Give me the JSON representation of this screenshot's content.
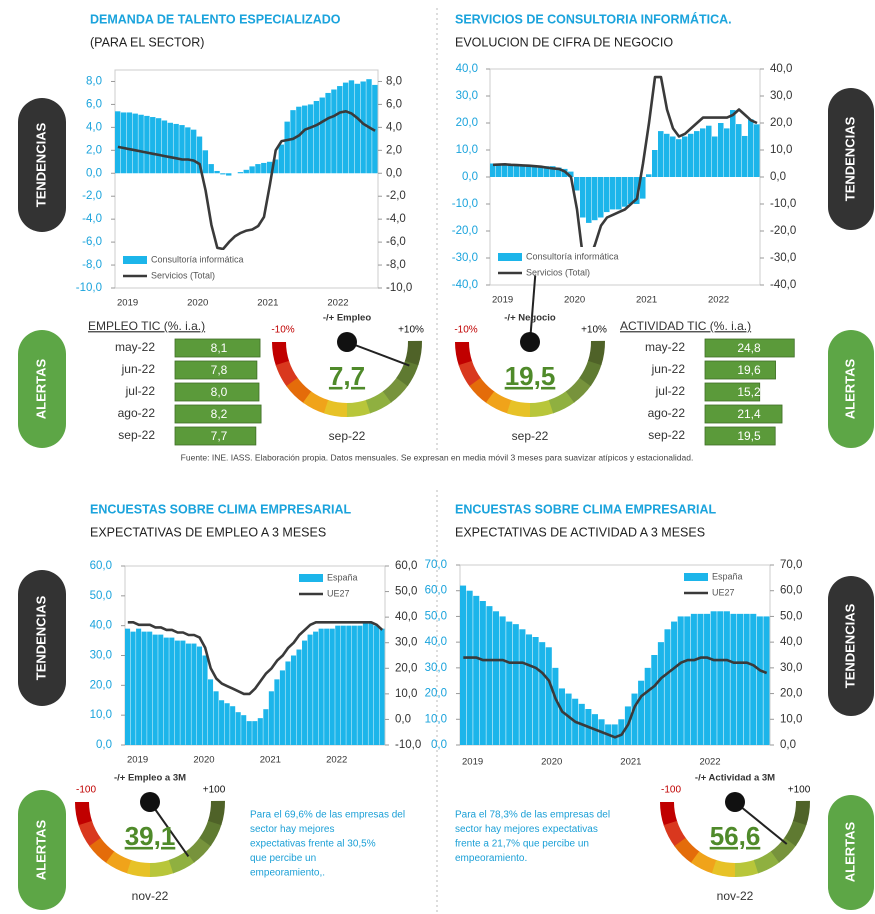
{
  "side_labels": {
    "trend": "TENDENCIAS",
    "alert": "ALERTAS"
  },
  "chart_data": [
    {
      "type": "combo",
      "title": "DEMANDA DE TALENTO ESPECIALIZADO",
      "subtitle": "(PARA EL SECTOR)",
      "categories": [
        "2019",
        null,
        null,
        null,
        null,
        null,
        null,
        null,
        null,
        null,
        null,
        null,
        "2020",
        null,
        null,
        null,
        null,
        null,
        null,
        null,
        null,
        null,
        null,
        null,
        "2021",
        null,
        null,
        null,
        null,
        null,
        null,
        null,
        null,
        null,
        null,
        null,
        "2022",
        null,
        null,
        null,
        null,
        null,
        null,
        null,
        null
      ],
      "ylim": [
        -10,
        9
      ],
      "yticks": [
        {
          "value": -10,
          "label": "-10,0"
        },
        {
          "value": -8,
          "label": "-8,0"
        },
        {
          "value": -6,
          "label": "-6,0"
        },
        {
          "value": -4,
          "label": "-4,0"
        },
        {
          "value": -2,
          "label": "-2,0"
        },
        {
          "value": 0,
          "label": "0,0"
        },
        {
          "value": 2,
          "label": "2,0"
        },
        {
          "value": 4,
          "label": "4,0"
        },
        {
          "value": 6,
          "label": "6,0"
        },
        {
          "value": 8,
          "label": "8,0"
        }
      ],
      "y2lim": [
        -10,
        9
      ],
      "y2ticks": [
        {
          "value": -10,
          "label": "-10,0"
        },
        {
          "value": -8,
          "label": "-8,0"
        },
        {
          "value": -6,
          "label": "-6,0"
        },
        {
          "value": -4,
          "label": "-4,0"
        },
        {
          "value": -2,
          "label": "-2,0"
        },
        {
          "value": 0,
          "label": "0,0"
        },
        {
          "value": 2,
          "label": "2,0"
        },
        {
          "value": 4,
          "label": "4,0"
        },
        {
          "value": 6,
          "label": "6,0"
        },
        {
          "value": 8,
          "label": "8,0"
        }
      ],
      "legend": "lower left",
      "series": [
        {
          "name": "Consultoría informática",
          "kind": "bar",
          "color": "#1cb5ea",
          "values": [
            5.4,
            5.3,
            5.3,
            5.2,
            5.1,
            5.0,
            4.9,
            4.8,
            4.6,
            4.4,
            4.3,
            4.2,
            4.0,
            3.8,
            3.2,
            2.0,
            0.8,
            0.2,
            -0.1,
            -0.2,
            0.0,
            0.1,
            0.3,
            0.6,
            0.8,
            0.9,
            1.0,
            1.2,
            2.5,
            4.5,
            5.5,
            5.8,
            5.9,
            6.0,
            6.3,
            6.6,
            7.0,
            7.3,
            7.6,
            7.9,
            8.1,
            7.8,
            8.0,
            8.2,
            7.7
          ]
        },
        {
          "name": "Servicios (Total)",
          "kind": "line",
          "axis": "y2",
          "color": "#3a3a3a",
          "values": [
            2.3,
            2.2,
            2.1,
            2.0,
            1.9,
            1.8,
            1.7,
            1.6,
            1.5,
            1.4,
            1.3,
            1.2,
            1.2,
            1.1,
            0.8,
            -1.5,
            -4.5,
            -6.5,
            -6.6,
            -6.0,
            -5.5,
            -5.2,
            -5.0,
            -4.9,
            -4.6,
            -3.8,
            -1.0,
            2.0,
            2.8,
            2.9,
            3.0,
            3.3,
            3.8,
            4.0,
            4.2,
            4.5,
            4.8,
            5.0,
            5.3,
            5.4,
            5.2,
            4.8,
            4.3,
            4.0,
            3.7
          ]
        }
      ]
    },
    {
      "type": "combo",
      "title": "SERVICIOS DE CONSULTORIA INFORMÁTICA.",
      "subtitle": "EVOLUCION DE CIFRA DE NEGOCIO",
      "categories": [
        "2019",
        null,
        null,
        null,
        null,
        null,
        null,
        null,
        null,
        null,
        null,
        null,
        "2020",
        null,
        null,
        null,
        null,
        null,
        null,
        null,
        null,
        null,
        null,
        null,
        "2021",
        null,
        null,
        null,
        null,
        null,
        null,
        null,
        null,
        null,
        null,
        null,
        "2022",
        null,
        null,
        null,
        null,
        null,
        null,
        null,
        null
      ],
      "ylim": [
        -40,
        40
      ],
      "yticks": [
        {
          "value": -40,
          "label": "-40,0"
        },
        {
          "value": -30,
          "label": "-30,0"
        },
        {
          "value": -20,
          "label": "-20,0"
        },
        {
          "value": -10,
          "label": "-10,0"
        },
        {
          "value": 0,
          "label": "0,0"
        },
        {
          "value": 10,
          "label": "10,0"
        },
        {
          "value": 20,
          "label": "20,0"
        },
        {
          "value": 30,
          "label": "30,0"
        },
        {
          "value": 40,
          "label": "40,0"
        }
      ],
      "y2lim": [
        -40,
        40
      ],
      "y2ticks": [
        {
          "value": -40,
          "label": "-40,0"
        },
        {
          "value": -30,
          "label": "-30,0"
        },
        {
          "value": -20,
          "label": "-20,0"
        },
        {
          "value": -10,
          "label": "-10,0"
        },
        {
          "value": 0,
          "label": "0,0"
        },
        {
          "value": 10,
          "label": "10,0"
        },
        {
          "value": 20,
          "label": "20,0"
        },
        {
          "value": 30,
          "label": "30,0"
        },
        {
          "value": 40,
          "label": "40,0"
        }
      ],
      "legend": "lower left",
      "series": [
        {
          "name": "Consultoría informática",
          "kind": "bar",
          "color": "#1cb5ea",
          "values": [
            5,
            5,
            5,
            4.5,
            4.5,
            4.5,
            4,
            4,
            4,
            4,
            4,
            3.5,
            3,
            2,
            -5,
            -15,
            -17,
            -16,
            -15,
            -13,
            -12,
            -12,
            -11,
            -10,
            -10,
            -8,
            1,
            10,
            17,
            16,
            15,
            14,
            15,
            16,
            17,
            18,
            19,
            15,
            20,
            18,
            24.8,
            19.6,
            15.2,
            21.4,
            19.5
          ]
        },
        {
          "name": "Servicios (Total)",
          "kind": "line",
          "axis": "y2",
          "color": "#3a3a3a",
          "values": [
            4.5,
            4.6,
            4.7,
            4.5,
            4.4,
            4.3,
            4.2,
            4,
            3.8,
            3.5,
            3.2,
            3,
            2,
            0,
            -12,
            -30,
            -31,
            -25,
            -18,
            -15,
            -14,
            -13,
            -12,
            -10,
            -8,
            5,
            20,
            37,
            37,
            25,
            18,
            15,
            16,
            18,
            20,
            22,
            22,
            22,
            22,
            22,
            23,
            25,
            23,
            21,
            20
          ]
        }
      ]
    },
    {
      "type": "combo",
      "title": "ENCUESTAS SOBRE CLIMA EMPRESARIAL",
      "subtitle": "EXPECTATIVAS DE EMPLEO A 3 MESES",
      "categories": [
        "2019",
        null,
        null,
        null,
        null,
        null,
        null,
        null,
        null,
        null,
        null,
        null,
        "2020",
        null,
        null,
        null,
        null,
        null,
        null,
        null,
        null,
        null,
        null,
        null,
        "2021",
        null,
        null,
        null,
        null,
        null,
        null,
        null,
        null,
        null,
        null,
        null,
        "2022",
        null,
        null,
        null,
        null,
        null,
        null,
        null,
        null,
        null,
        null
      ],
      "ylim": [
        0,
        60
      ],
      "yticks": [
        {
          "value": 0,
          "label": "0,0"
        },
        {
          "value": 10,
          "label": "10,0"
        },
        {
          "value": 20,
          "label": "20,0"
        },
        {
          "value": 30,
          "label": "30,0"
        },
        {
          "value": 40,
          "label": "40,0"
        },
        {
          "value": 50,
          "label": "50,0"
        },
        {
          "value": 60,
          "label": "60,0"
        }
      ],
      "y2lim": [
        -10,
        60
      ],
      "y2ticks": [
        {
          "value": -10,
          "label": "-10,0"
        },
        {
          "value": 0,
          "label": "0,0"
        },
        {
          "value": 10,
          "label": "10,0"
        },
        {
          "value": 20,
          "label": "20,0"
        },
        {
          "value": 30,
          "label": "30,0"
        },
        {
          "value": 40,
          "label": "40,0"
        },
        {
          "value": 50,
          "label": "50,0"
        },
        {
          "value": 60,
          "label": "60,0"
        }
      ],
      "legend": "upper right",
      "series": [
        {
          "name": "España",
          "kind": "bar",
          "color": "#1cb5ea",
          "values": [
            39,
            38,
            39,
            38,
            38,
            37,
            37,
            36,
            36,
            35,
            35,
            34,
            34,
            33,
            30,
            22,
            18,
            15,
            14,
            13,
            11,
            10,
            8,
            8,
            9,
            12,
            18,
            22,
            25,
            28,
            30,
            32,
            35,
            37,
            38,
            39,
            39,
            39,
            40,
            40,
            40,
            40,
            40,
            41,
            41,
            40,
            39
          ]
        },
        {
          "name": "UE27",
          "kind": "line",
          "axis": "y2",
          "color": "#3a3a3a",
          "values": [
            38,
            38,
            37,
            37,
            37,
            36,
            36,
            35,
            35,
            34,
            34,
            33,
            33,
            32,
            28,
            20,
            16,
            14,
            13,
            12,
            11,
            10,
            10,
            12,
            15,
            18,
            20,
            23,
            25,
            28,
            30,
            33,
            35,
            37,
            38,
            38,
            38,
            38,
            38,
            38,
            38,
            38,
            38,
            38,
            38,
            37,
            35
          ]
        }
      ]
    },
    {
      "type": "combo",
      "title": "ENCUESTAS SOBRE CLIMA EMPRESARIAL",
      "subtitle": "EXPECTATIVAS DE ACTIVIDAD A 3 MESES",
      "categories": [
        "2019",
        null,
        null,
        null,
        null,
        null,
        null,
        null,
        null,
        null,
        null,
        null,
        "2020",
        null,
        null,
        null,
        null,
        null,
        null,
        null,
        null,
        null,
        null,
        null,
        "2021",
        null,
        null,
        null,
        null,
        null,
        null,
        null,
        null,
        null,
        null,
        null,
        "2022",
        null,
        null,
        null,
        null,
        null,
        null,
        null,
        null,
        null,
        null
      ],
      "ylim": [
        0,
        70
      ],
      "yticks": [
        {
          "value": 0,
          "label": "0,0"
        },
        {
          "value": 10,
          "label": "10,0"
        },
        {
          "value": 20,
          "label": "20,0"
        },
        {
          "value": 30,
          "label": "30,0"
        },
        {
          "value": 40,
          "label": "40,0"
        },
        {
          "value": 50,
          "label": "50,0"
        },
        {
          "value": 60,
          "label": "60,0"
        },
        {
          "value": 70,
          "label": "70,0"
        }
      ],
      "y2lim": [
        0,
        70
      ],
      "y2ticks": [
        {
          "value": 0,
          "label": "0,0"
        },
        {
          "value": 10,
          "label": "10,0"
        },
        {
          "value": 20,
          "label": "20,0"
        },
        {
          "value": 30,
          "label": "30,0"
        },
        {
          "value": 40,
          "label": "40,0"
        },
        {
          "value": 50,
          "label": "50,0"
        },
        {
          "value": 60,
          "label": "60,0"
        },
        {
          "value": 70,
          "label": "70,0"
        }
      ],
      "legend": "upper right",
      "series": [
        {
          "name": "España",
          "kind": "bar",
          "color": "#1cb5ea",
          "values": [
            62,
            60,
            58,
            56,
            54,
            52,
            50,
            48,
            47,
            45,
            43,
            42,
            40,
            38,
            30,
            22,
            20,
            18,
            16,
            14,
            12,
            10,
            8,
            8,
            10,
            15,
            20,
            25,
            30,
            35,
            40,
            45,
            48,
            50,
            50,
            51,
            51,
            51,
            52,
            52,
            52,
            51,
            51,
            51,
            51,
            50,
            50
          ]
        },
        {
          "name": "UE27",
          "kind": "line",
          "axis": "y2",
          "color": "#3a3a3a",
          "values": [
            34,
            34,
            34,
            33,
            33,
            33,
            33,
            32,
            32,
            32,
            31,
            30,
            28,
            25,
            18,
            13,
            11,
            9,
            8,
            7,
            6,
            5,
            4,
            3,
            4,
            8,
            15,
            19,
            21,
            23,
            26,
            28,
            30,
            32,
            33,
            33,
            34,
            34,
            33,
            33,
            33,
            32,
            32,
            32,
            31,
            29,
            28
          ]
        }
      ]
    }
  ],
  "tables": [
    {
      "title": "EMPLEO TIC (%. i.a.)",
      "categories": [
        "may-22",
        "jun-22",
        "jul-22",
        "ago-22",
        "sep-22"
      ],
      "values": [
        8.1,
        7.8,
        8.0,
        8.2,
        7.7
      ],
      "value_labels": [
        "8,1",
        "7,8",
        "8,0",
        "8,2",
        "7,7"
      ]
    },
    {
      "title": "ACTIVIDAD TIC (%. i.a.)",
      "categories": [
        "may-22",
        "jun-22",
        "jul-22",
        "ago-22",
        "sep-22"
      ],
      "values": [
        24.8,
        19.6,
        15.2,
        21.4,
        19.5
      ],
      "value_labels": [
        "24,8",
        "19,6",
        "15,2",
        "21,4",
        "19,5"
      ]
    }
  ],
  "gauges": [
    {
      "title": "-/+ Empleo",
      "min": {
        "value": -10,
        "label": "-10%"
      },
      "max": {
        "value": 10,
        "label": "+10%"
      },
      "value": 7.7,
      "value_label": "7,7",
      "period": "sep-22"
    },
    {
      "title": "-/+ Negocio",
      "min": {
        "value": -10,
        "label": "-10%"
      },
      "max": {
        "value": 10,
        "label": "+10%"
      },
      "value": 19.5,
      "value_label": "19,5",
      "period": "sep-22"
    },
    {
      "title": "-/+ Empleo a 3M",
      "min": -100,
      "max": {
        "value": 100,
        "label": "+100"
      },
      "value": 39.1,
      "value_label": "39,1",
      "period": "nov-22"
    },
    {
      "title": "-/+ Actividad a 3M",
      "min": -100,
      "max": {
        "value": 100,
        "label": "+100"
      },
      "value": 56.6,
      "value_label": "56,6",
      "period": "nov-22"
    }
  ],
  "footnote": "Fuente: INE. IASS. Elaboración propia. Datos mensuales. Se expresan en media móvil 3 meses  para suavizar atípicos y estacionalidad.",
  "notes": [
    [
      "Para el 69,6% de las empresas del",
      "sector hay mejores",
      "expectativas frente al 30,5%",
      "que percibe un",
      "empeoramiento,."
    ],
    [
      "Para el 78,3% de las empresas del",
      "sector hay mejores expectativas",
      "frente a 21,7% que percibe un",
      "empeoramiento."
    ]
  ]
}
